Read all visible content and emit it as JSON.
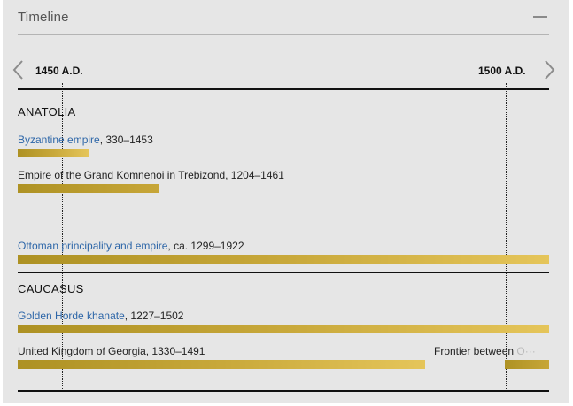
{
  "header": {
    "title": "Timeline"
  },
  "axis": {
    "start_year": "1450 A.D.",
    "end_year": "1500 A.D."
  },
  "regions": [
    {
      "name": "ANATOLIA",
      "entries": [
        {
          "link": "Byzantine empire",
          "rest": ", 330–1453"
        },
        {
          "link": "",
          "rest": "Empire of the Grand Komnenoi in Trebizond, 1204–1461"
        },
        {
          "link": "Ottoman principality and empire",
          "rest": ", ca. 1299–1922"
        }
      ]
    },
    {
      "name": "CAUCASUS",
      "entries": [
        {
          "link": "Golden Horde khanate",
          "rest": ", 1227–1502"
        },
        {
          "link": "",
          "rest": "United Kingdom of Georgia, 1330–1491"
        }
      ]
    }
  ],
  "frontier": {
    "visible": "Frontier between ",
    "faded": "O···"
  },
  "colors": {
    "bar_gold": "#c9a73a",
    "link_blue": "#2d66a8"
  }
}
